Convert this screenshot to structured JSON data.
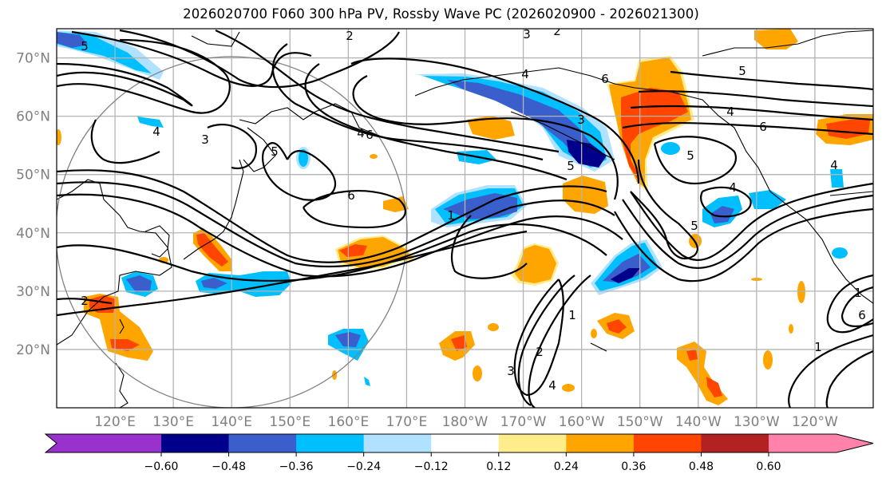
{
  "title": "2026020700 F060 300 hPa PV, Rossby Wave PC (2026020900 - 2026021300)",
  "map": {
    "projection": "Plate Carree",
    "region": "North Pacific",
    "lat_labels": [
      "70°N",
      "60°N",
      "50°N",
      "40°N",
      "30°N",
      "20°N"
    ],
    "lat_values": [
      70,
      60,
      50,
      40,
      30,
      20
    ],
    "lon_labels": [
      "120°E",
      "130°E",
      "140°E",
      "150°E",
      "160°E",
      "170°E",
      "180°W",
      "170°W",
      "160°W",
      "150°W",
      "140°W",
      "130°W",
      "120°W"
    ],
    "lon_values": [
      120,
      130,
      140,
      150,
      160,
      170,
      180,
      190,
      200,
      210,
      220,
      230,
      240
    ],
    "lon_range": [
      110,
      250
    ],
    "lat_range": [
      10,
      75
    ],
    "contour_field": "300 hPa PV (PVU)",
    "contour_labels": [
      "5",
      "2",
      "3",
      "2",
      "4",
      "6",
      "6",
      "5",
      "4",
      "6",
      "6",
      "4",
      "5",
      "4",
      "5",
      "3",
      "5",
      "2",
      "1",
      "2",
      "3",
      "4",
      "1",
      "1",
      "1",
      "5",
      "4",
      "6",
      "3",
      "4"
    ],
    "circle_annotation": "radius circle centered near 140°E, 40°N"
  },
  "colorbar": {
    "levels": [
      "−0.60",
      "−0.48",
      "−0.36",
      "−0.24",
      "−0.12",
      "0.12",
      "0.24",
      "0.36",
      "0.48",
      "0.60"
    ],
    "colors": [
      "#9932cc",
      "#00008b",
      "#3a5fcd",
      "#00bfff",
      "#b0e2ff",
      "#ffffff",
      "#ffec8b",
      "#ffa500",
      "#ff4500",
      "#b22222",
      "#ff82ab"
    ],
    "extend": "both"
  }
}
